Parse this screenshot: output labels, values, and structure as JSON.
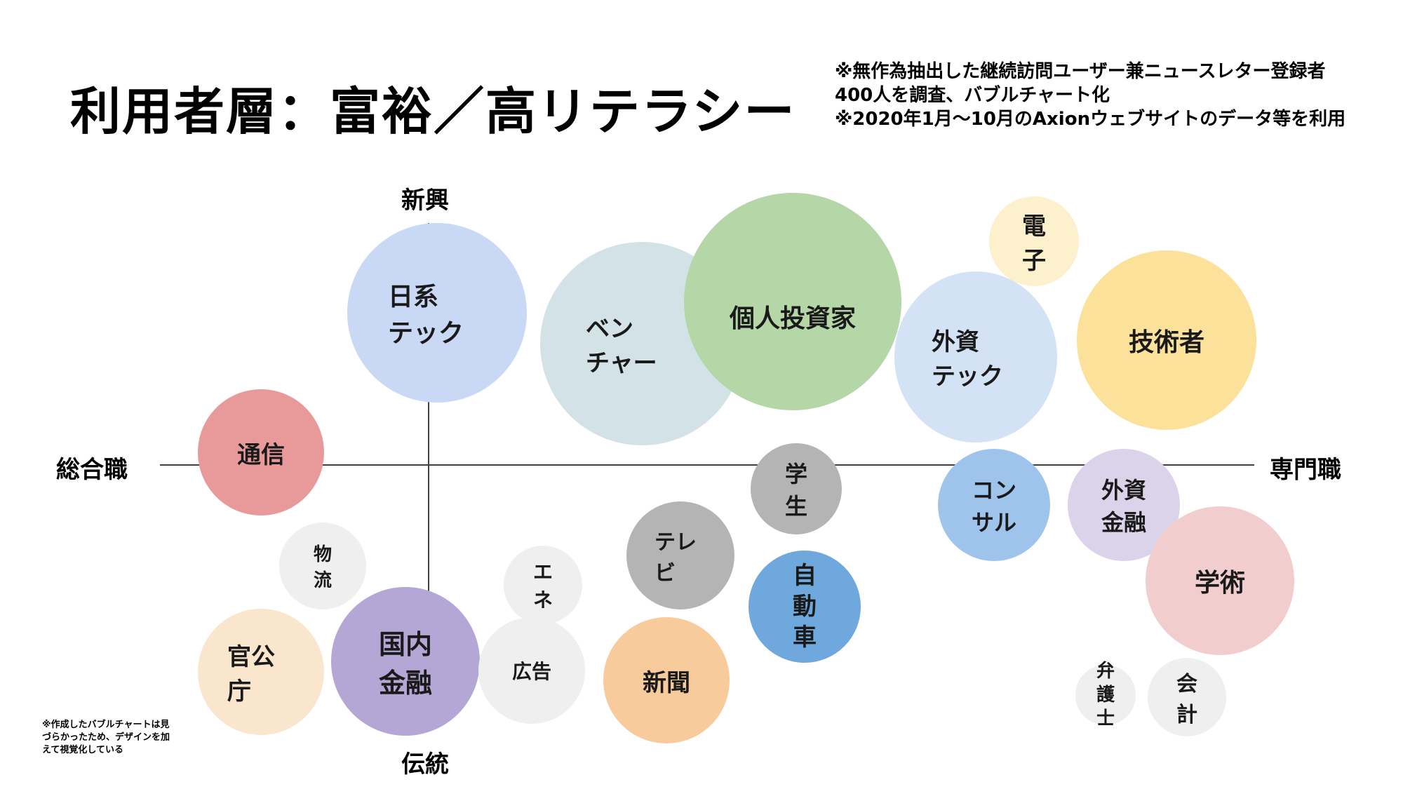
{
  "title": "利用者層：富裕／高リテラシー",
  "note": {
    "line1": "※無作為抽出した継続訪問ユーザー兼ニュースレター登録者",
    "line2": "400人を調査、バブルチャート化",
    "line3": "※2020年1月～10月のAxionウェブサイトのデータ等を利用"
  },
  "footnote": "※作成したバブルチャートは見づらかったため、デザインを加えて視覚化している",
  "axes": {
    "top": "新興",
    "bottom": "伝統",
    "left": "総合職",
    "right": "専門職"
  },
  "bubbles": {
    "nikkei_tech": "日系\nテック",
    "venture": "ベン\nチャー",
    "individual_investor": "個人投資家",
    "foreign_tech": "外資\nテック",
    "electronics": "電\n子",
    "engineer": "技術者",
    "telecom": "通信",
    "student": "学\n生",
    "consulting": "コン\nサル",
    "foreign_finance": "外資\n金融",
    "academic": "学術",
    "logistics": "物\n流",
    "energy": "エ\nネ",
    "tv": "テレ\nビ",
    "automotive": "自\n動\n車",
    "government": "官公\n庁",
    "domestic_finance": "国内\n金融",
    "advertising": "広告",
    "newspaper": "新聞",
    "lawyer": "弁\n護\n士",
    "accounting": "会\n計"
  },
  "colors": {
    "nikkei_tech": "#c9d9f5",
    "venture": "#d3e2e6",
    "individual_investor": "#b5d6a7",
    "foreign_tech": "#d3e3f5",
    "electronics": "#fdf0cd",
    "engineer": "#fbe19a",
    "telecom": "#e89a9a",
    "student": "#b4b4b4",
    "consulting": "#9fc4eb",
    "foreign_finance": "#dad3ea",
    "academic": "#f1cdcd",
    "logistics": "#efefef",
    "energy": "#efefef",
    "tv": "#b4b4b4",
    "automotive": "#6fa8dc",
    "government": "#f9e6cd",
    "domestic_finance": "#b4a7d6",
    "advertising": "#efefef",
    "newspaper": "#f8cb9c",
    "lawyer": "#efefef",
    "accounting": "#efefef"
  }
}
